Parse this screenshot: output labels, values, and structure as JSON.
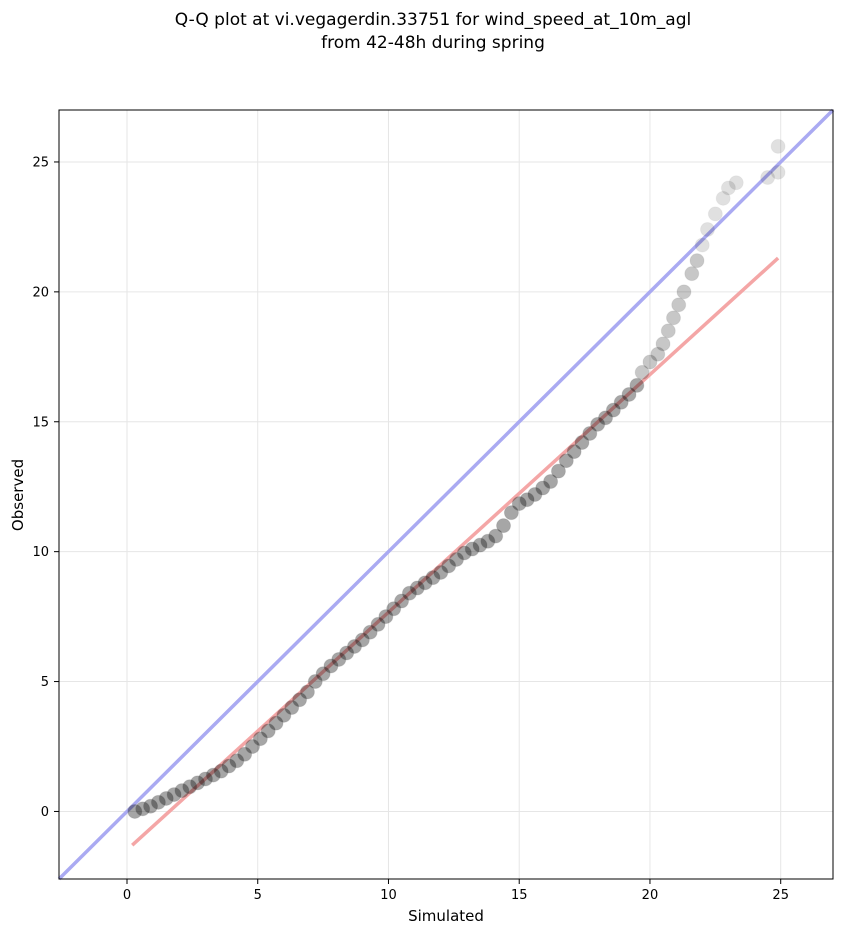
{
  "chart_data": {
    "type": "scatter",
    "title_lines": [
      "Q-Q plot at vi.vegagerdin.33751 for wind_speed_at_10m_agl",
      "from 42-48h during spring"
    ],
    "xlabel": "Simulated",
    "ylabel": "Observed",
    "xlim": [
      -2.6,
      27
    ],
    "ylim": [
      -2.6,
      27
    ],
    "xticks": [
      0,
      5,
      10,
      15,
      20,
      25
    ],
    "yticks": [
      0,
      5,
      10,
      15,
      20,
      25
    ],
    "grid": true,
    "reference_line": {
      "name": "1:1",
      "color": "#aaaaf2",
      "from": [
        -2.6,
        -2.6
      ],
      "to": [
        27,
        27
      ]
    },
    "fit_line": {
      "color": "#f4a6a6",
      "from": [
        0.2,
        -1.3
      ],
      "to": [
        24.9,
        21.3
      ]
    },
    "point_color": "#000000",
    "quantiles": [
      {
        "x": 0.3,
        "y": 0.0
      },
      {
        "x": 0.6,
        "y": 0.1
      },
      {
        "x": 0.9,
        "y": 0.2
      },
      {
        "x": 1.2,
        "y": 0.35
      },
      {
        "x": 1.5,
        "y": 0.5
      },
      {
        "x": 1.8,
        "y": 0.65
      },
      {
        "x": 2.1,
        "y": 0.8
      },
      {
        "x": 2.4,
        "y": 0.95
      },
      {
        "x": 2.7,
        "y": 1.1
      },
      {
        "x": 3.0,
        "y": 1.25
      },
      {
        "x": 3.3,
        "y": 1.4
      },
      {
        "x": 3.6,
        "y": 1.55
      },
      {
        "x": 3.9,
        "y": 1.75
      },
      {
        "x": 4.2,
        "y": 1.95
      },
      {
        "x": 4.5,
        "y": 2.2
      },
      {
        "x": 4.8,
        "y": 2.5
      },
      {
        "x": 5.1,
        "y": 2.8
      },
      {
        "x": 5.4,
        "y": 3.1
      },
      {
        "x": 5.7,
        "y": 3.4
      },
      {
        "x": 6.0,
        "y": 3.7
      },
      {
        "x": 6.3,
        "y": 4.0
      },
      {
        "x": 6.6,
        "y": 4.3
      },
      {
        "x": 6.9,
        "y": 4.6
      },
      {
        "x": 7.2,
        "y": 5.0
      },
      {
        "x": 7.5,
        "y": 5.3
      },
      {
        "x": 7.8,
        "y": 5.6
      },
      {
        "x": 8.1,
        "y": 5.85
      },
      {
        "x": 8.4,
        "y": 6.1
      },
      {
        "x": 8.7,
        "y": 6.35
      },
      {
        "x": 9.0,
        "y": 6.6
      },
      {
        "x": 9.3,
        "y": 6.9
      },
      {
        "x": 9.6,
        "y": 7.2
      },
      {
        "x": 9.9,
        "y": 7.5
      },
      {
        "x": 10.2,
        "y": 7.8
      },
      {
        "x": 10.5,
        "y": 8.1
      },
      {
        "x": 10.8,
        "y": 8.4
      },
      {
        "x": 11.1,
        "y": 8.6
      },
      {
        "x": 11.4,
        "y": 8.8
      },
      {
        "x": 11.7,
        "y": 9.0
      },
      {
        "x": 12.0,
        "y": 9.2
      },
      {
        "x": 12.3,
        "y": 9.45
      },
      {
        "x": 12.6,
        "y": 9.7
      },
      {
        "x": 12.9,
        "y": 9.95
      },
      {
        "x": 13.2,
        "y": 10.1
      },
      {
        "x": 13.5,
        "y": 10.25
      },
      {
        "x": 13.8,
        "y": 10.4
      },
      {
        "x": 14.1,
        "y": 10.6
      },
      {
        "x": 14.4,
        "y": 11.0
      },
      {
        "x": 14.7,
        "y": 11.5
      },
      {
        "x": 15.0,
        "y": 11.85
      },
      {
        "x": 15.3,
        "y": 12.0
      },
      {
        "x": 15.6,
        "y": 12.2
      },
      {
        "x": 15.9,
        "y": 12.45
      },
      {
        "x": 16.2,
        "y": 12.7
      },
      {
        "x": 16.5,
        "y": 13.1
      },
      {
        "x": 16.8,
        "y": 13.5
      },
      {
        "x": 17.1,
        "y": 13.85
      },
      {
        "x": 17.4,
        "y": 14.2
      },
      {
        "x": 17.7,
        "y": 14.55
      },
      {
        "x": 18.0,
        "y": 14.9
      },
      {
        "x": 18.3,
        "y": 15.15
      },
      {
        "x": 18.6,
        "y": 15.45
      },
      {
        "x": 18.9,
        "y": 15.75
      },
      {
        "x": 19.2,
        "y": 16.05
      },
      {
        "x": 19.5,
        "y": 16.4
      },
      {
        "x": 19.7,
        "y": 16.9
      },
      {
        "x": 20.0,
        "y": 17.3
      },
      {
        "x": 20.3,
        "y": 17.6
      },
      {
        "x": 20.5,
        "y": 18.0
      },
      {
        "x": 20.7,
        "y": 18.5
      },
      {
        "x": 20.9,
        "y": 19.0
      },
      {
        "x": 21.1,
        "y": 19.5
      },
      {
        "x": 21.3,
        "y": 20.0
      },
      {
        "x": 21.6,
        "y": 20.7
      },
      {
        "x": 21.8,
        "y": 21.2
      },
      {
        "x": 22.0,
        "y": 21.8
      },
      {
        "x": 22.2,
        "y": 22.4
      },
      {
        "x": 22.5,
        "y": 23.0
      },
      {
        "x": 22.8,
        "y": 23.6
      },
      {
        "x": 23.0,
        "y": 24.0
      },
      {
        "x": 23.3,
        "y": 24.2
      },
      {
        "x": 24.5,
        "y": 24.4
      },
      {
        "x": 24.9,
        "y": 24.6
      },
      {
        "x": 24.9,
        "y": 25.6
      }
    ]
  }
}
